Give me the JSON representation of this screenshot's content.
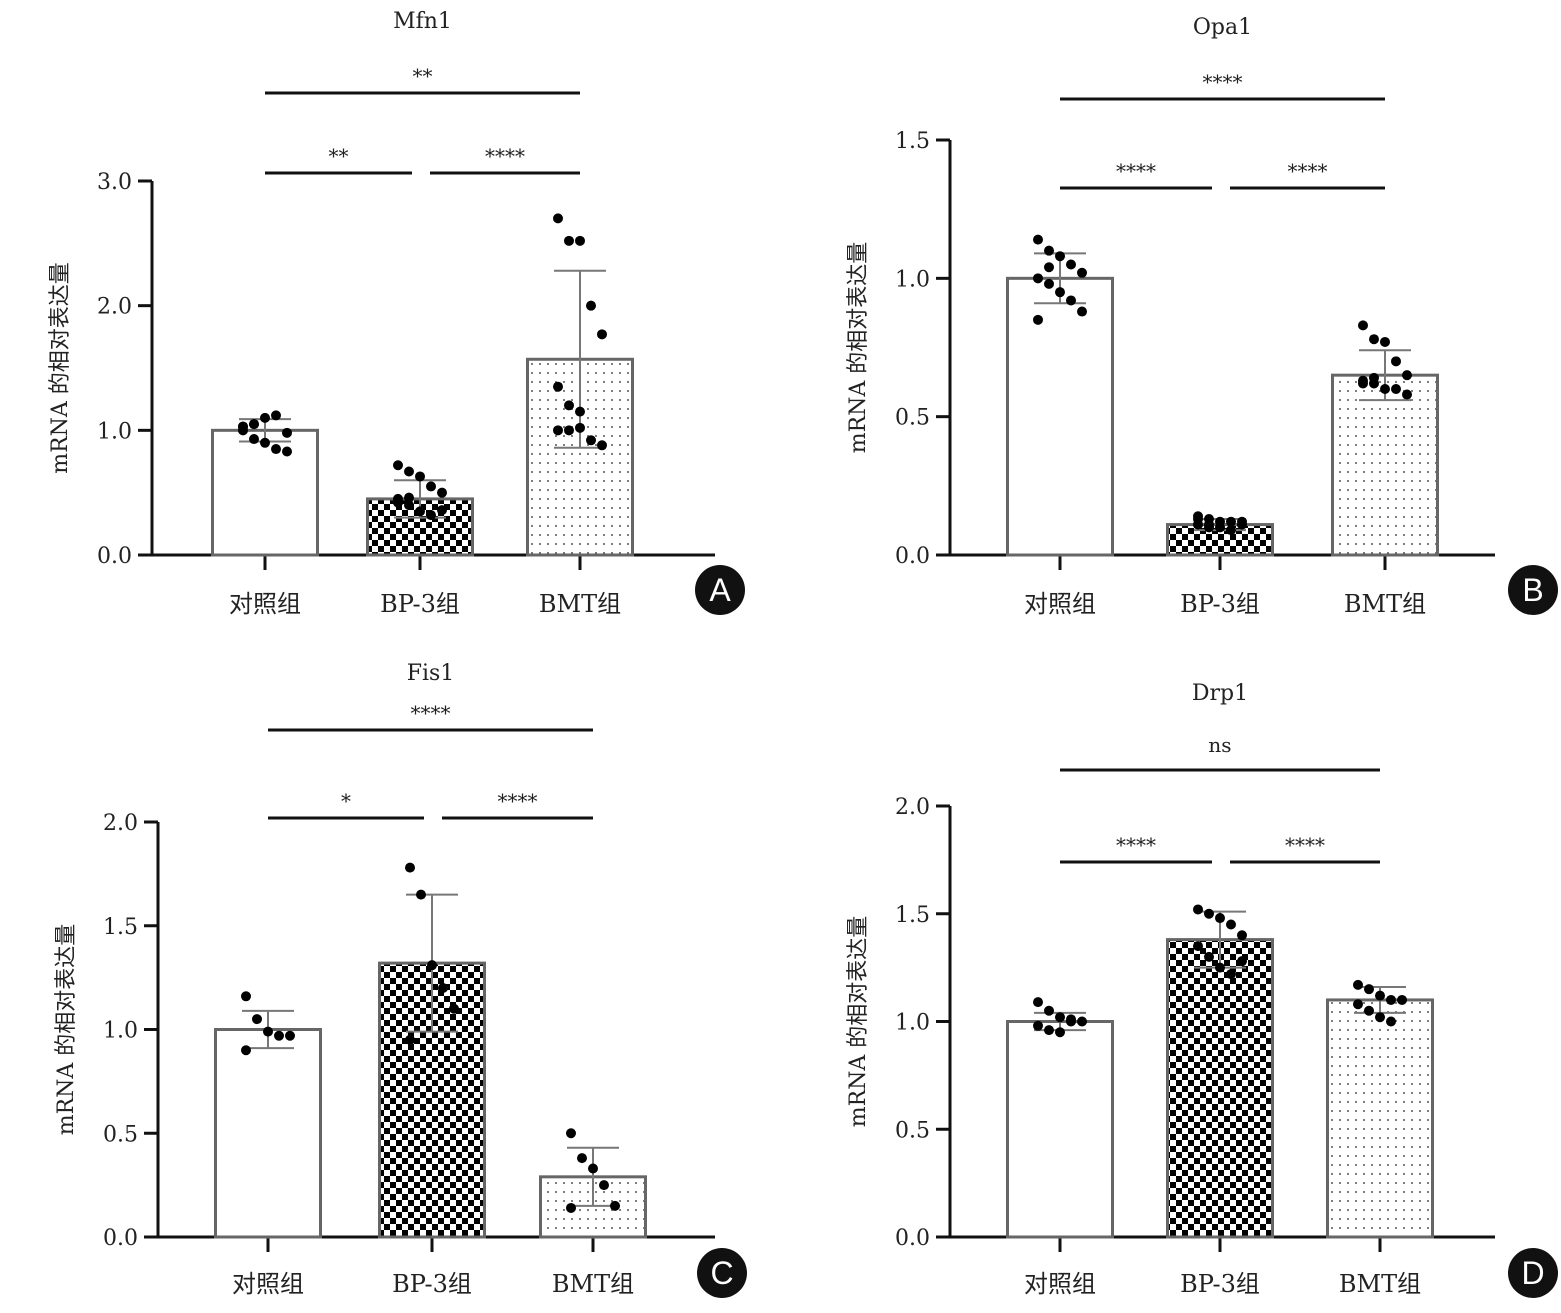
{
  "y_label": "mRNA 的相对表达量",
  "categories": [
    "对照组",
    "BP-3组",
    "BMT组"
  ],
  "chart_data": [
    {
      "type": "bar",
      "panel": "A",
      "title": "Mfn1",
      "ylim": [
        0,
        3.0
      ],
      "yticks": [
        "0.0",
        "1.0",
        "2.0",
        "3.0"
      ],
      "ytick_values": [
        0,
        1,
        2,
        3
      ],
      "means": [
        1.0,
        0.45,
        1.57
      ],
      "sd": [
        0.09,
        0.15,
        0.71
      ],
      "points": [
        [
          1.0,
          1.05,
          1.1,
          1.12,
          0.98,
          1.03,
          0.93,
          0.9,
          0.85,
          0.83,
          1.03,
          1.05
        ],
        [
          0.72,
          0.67,
          0.63,
          0.55,
          0.5,
          0.45,
          0.4,
          0.35,
          0.32,
          0.36,
          0.42,
          0.46
        ],
        [
          2.7,
          2.52,
          2.52,
          2.0,
          1.77,
          1.35,
          1.2,
          1.02,
          0.92,
          0.88,
          1.0,
          1.0,
          1.15
        ]
      ],
      "significance": [
        {
          "pair": [
            0,
            2
          ],
          "label": "**"
        },
        {
          "pair": [
            0,
            1
          ],
          "label": "**"
        },
        {
          "pair": [
            1,
            2
          ],
          "label": "****"
        }
      ]
    },
    {
      "type": "bar",
      "panel": "B",
      "title": "Opa1",
      "ylim": [
        0,
        1.5
      ],
      "yticks": [
        "0.0",
        "0.5",
        "1.0",
        "1.5"
      ],
      "ytick_values": [
        0,
        0.5,
        1.0,
        1.5
      ],
      "means": [
        1.0,
        0.11,
        0.65
      ],
      "sd": [
        0.09,
        0.02,
        0.09
      ],
      "points": [
        [
          1.14,
          1.1,
          1.08,
          1.05,
          1.02,
          1.0,
          0.98,
          0.95,
          0.92,
          0.88,
          0.85,
          1.04
        ],
        [
          0.14,
          0.13,
          0.12,
          0.12,
          0.11,
          0.11,
          0.1,
          0.1,
          0.09,
          0.12,
          0.13,
          0.11
        ],
        [
          0.83,
          0.78,
          0.77,
          0.7,
          0.65,
          0.63,
          0.62,
          0.6,
          0.6,
          0.58,
          0.62,
          0.64
        ]
      ],
      "significance": [
        {
          "pair": [
            0,
            2
          ],
          "label": "****"
        },
        {
          "pair": [
            0,
            1
          ],
          "label": "****"
        },
        {
          "pair": [
            1,
            2
          ],
          "label": "****"
        }
      ]
    },
    {
      "type": "bar",
      "panel": "C",
      "title": "Fis1",
      "ylim": [
        0,
        2.0
      ],
      "yticks": [
        "0.0",
        "0.5",
        "1.0",
        "1.5",
        "2.0"
      ],
      "ytick_values": [
        0,
        0.5,
        1.0,
        1.5,
        2.0
      ],
      "means": [
        1.0,
        1.32,
        0.29
      ],
      "sd": [
        0.09,
        0.33,
        0.14
      ],
      "points": [
        [
          1.16,
          1.05,
          0.99,
          0.97,
          0.97,
          0.9
        ],
        [
          1.78,
          1.65,
          1.31,
          1.2,
          1.1,
          0.95
        ],
        [
          0.5,
          0.38,
          0.33,
          0.25,
          0.15,
          0.14
        ]
      ],
      "significance": [
        {
          "pair": [
            0,
            2
          ],
          "label": "****"
        },
        {
          "pair": [
            0,
            1
          ],
          "label": "*"
        },
        {
          "pair": [
            1,
            2
          ],
          "label": "****"
        }
      ]
    },
    {
      "type": "bar",
      "panel": "D",
      "title": "Drp1",
      "ylim": [
        0,
        2.0
      ],
      "yticks": [
        "0.0",
        "0.5",
        "1.0",
        "1.5",
        "2.0"
      ],
      "ytick_values": [
        0,
        0.5,
        1.0,
        1.5,
        2.0
      ],
      "means": [
        1.0,
        1.38,
        1.1
      ],
      "sd": [
        0.04,
        0.13,
        0.06
      ],
      "points": [
        [
          1.09,
          1.05,
          1.02,
          1.0,
          1.0,
          0.98,
          0.96,
          0.95,
          1.01
        ],
        [
          1.52,
          1.5,
          1.48,
          1.45,
          1.4,
          1.35,
          1.3,
          1.25,
          1.22,
          1.28
        ],
        [
          1.17,
          1.15,
          1.12,
          1.1,
          1.1,
          1.08,
          1.05,
          1.02,
          1.0
        ]
      ],
      "significance": [
        {
          "pair": [
            0,
            2
          ],
          "label": "ns"
        },
        {
          "pair": [
            0,
            1
          ],
          "label": "****"
        },
        {
          "pair": [
            1,
            2
          ],
          "label": "****"
        }
      ]
    }
  ]
}
